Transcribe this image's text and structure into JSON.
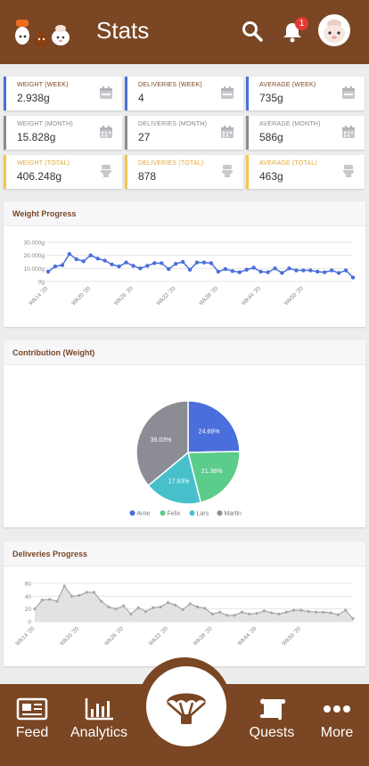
{
  "header": {
    "title": "Stats",
    "notification_count": "1",
    "colors": {
      "bar": "#7a4623",
      "badge": "#e53935"
    }
  },
  "cards": [
    {
      "label": "Weight (Week)",
      "value": "2.938g",
      "style": "blue",
      "icon": "calendar-week-icon"
    },
    {
      "label": "Deliveries (Week)",
      "value": "4",
      "style": "blue",
      "icon": "calendar-week-icon"
    },
    {
      "label": "Average (Week)",
      "value": "735g",
      "style": "blue",
      "icon": "calendar-week-icon"
    },
    {
      "label": "Weight (Month)",
      "value": "15.828g",
      "style": "grey",
      "icon": "calendar-month-icon"
    },
    {
      "label": "Deliveries (Month)",
      "value": "27",
      "style": "grey",
      "icon": "calendar-month-icon"
    },
    {
      "label": "Average (Month)",
      "value": "586g",
      "style": "grey",
      "icon": "calendar-month-icon"
    },
    {
      "label": "Weight (Total)",
      "value": "406.248g",
      "style": "yellow",
      "icon": "toilet-icon"
    },
    {
      "label": "Deliveries (Total)",
      "value": "878",
      "style": "yellow",
      "icon": "toilet-icon"
    },
    {
      "label": "Average (Total)",
      "value": "463g",
      "style": "yellow",
      "icon": "toilet-icon"
    }
  ],
  "weight_panel": {
    "title": "Weight Progress"
  },
  "contribution_panel": {
    "title": "Contribution (Weight)"
  },
  "deliveries_panel": {
    "title": "Deliveries Progress"
  },
  "chart_data": [
    {
      "type": "line",
      "title": "Weight Progress",
      "yticks": [
        "0g",
        "10.000g",
        "20.000g",
        "30.000g"
      ],
      "ylim": [
        0,
        30000
      ],
      "xticks": [
        "Wk14 '20",
        "Wk20 '20",
        "Wk26 '20",
        "Wk32 '20",
        "Wk38 '20",
        "Wk44 '20",
        "Wk50 '20"
      ],
      "values": [
        7500,
        11500,
        12500,
        21000,
        17000,
        15500,
        20000,
        17500,
        16000,
        13000,
        11500,
        14500,
        12000,
        10000,
        12000,
        14000,
        14000,
        9500,
        13500,
        15000,
        9000,
        14500,
        14500,
        14000,
        7500,
        9500,
        8000,
        7000,
        9000,
        10500,
        7500,
        7000,
        10000,
        6500,
        10000,
        8500,
        8500,
        8500,
        7500,
        7000,
        8500,
        6500,
        8500,
        3000
      ],
      "grid": true,
      "color": "#4a6edb"
    },
    {
      "type": "pie",
      "title": "Contribution (Weight)",
      "labels": [
        "Arne",
        "Felix",
        "Lars",
        "Martin"
      ],
      "values": [
        24.69,
        21.36,
        17.93,
        36.03
      ],
      "value_labels": [
        "24.69%",
        "21.36%",
        "17.93%",
        "36.03%"
      ],
      "colors": [
        "#4a6edb",
        "#5ccc8a",
        "#48c0cc",
        "#8c8c94"
      ],
      "legend": "bottom"
    },
    {
      "type": "area",
      "title": "Deliveries Progress",
      "yticks": [
        "0",
        "20",
        "40",
        "60"
      ],
      "ylim": [
        0,
        60
      ],
      "xticks": [
        "Wk14 '20",
        "Wk20 '20",
        "Wk26 '20",
        "Wk32 '20",
        "Wk38 '20",
        "Wk44 '20",
        "Wk50 '20"
      ],
      "values": [
        20,
        34,
        35,
        32,
        56,
        40,
        41,
        46,
        46,
        32,
        23,
        20,
        25,
        12,
        22,
        16,
        22,
        23,
        30,
        26,
        19,
        28,
        23,
        21,
        12,
        15,
        10,
        10,
        15,
        12,
        13,
        17,
        14,
        12,
        15,
        18,
        18,
        16,
        15,
        15,
        14,
        11,
        18,
        5
      ],
      "grid": true,
      "color": "#9a9a9a"
    }
  ],
  "nav": {
    "feed_label": "Feed",
    "analytics_label": "Analytics",
    "quests_label": "Quests",
    "more_label": "More"
  }
}
